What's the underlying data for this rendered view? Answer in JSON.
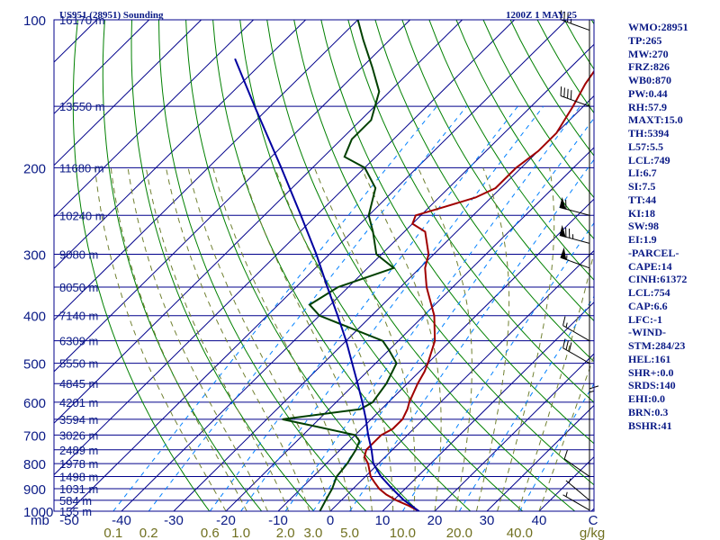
{
  "header": {
    "station": "US951 (28951) Sounding",
    "time": "1200Z  1 MAY 25"
  },
  "indices": [
    "WMO:28951",
    "TP:265",
    "MW:270",
    "FRZ:826",
    "WB0:870",
    "PW:0.44",
    "RH:57.9",
    "MAXT:15.0",
    "TH:5394",
    "L57:5.5",
    "LCL:749",
    "LI:6.7",
    "SI:7.5",
    "TT:44",
    "KI:18",
    "SW:98",
    "EI:1.9",
    "-PARCEL-",
    "CAPE:14",
    "CINH:61372",
    "LCL:754",
    "CAP:6.6",
    "LFC:-1",
    "-WIND-",
    "STM:284/23",
    "HEL:161",
    "SHR+:0.0",
    "SRDS:140",
    "EHI:0.0",
    "BRN:0.3",
    "BSHR:41"
  ],
  "colors": {
    "temperature": "#a00000",
    "dewpoint": "#004000",
    "parcel": "#0000a0",
    "isobar": "#00008b",
    "isotherm": "#00008b",
    "dry_adiabat": "#008000",
    "moist_adiabat": "#708030",
    "mixing_ratio": "#0080ff",
    "axis_text": "#0a1a86"
  },
  "chart_data": {
    "type": "line",
    "title": "US951 (28951) Sounding",
    "xlabel": "",
    "ylabel": "mb",
    "pressure_ticks": [
      100,
      200,
      300,
      400,
      500,
      600,
      700,
      800,
      900,
      1000
    ],
    "temperature_ticks": [
      -50,
      -40,
      -30,
      -20,
      -10,
      0,
      10,
      20,
      30,
      40
    ],
    "x_unit_label": "C",
    "mixing_ratio_labels": [
      "0.1",
      "0.2",
      "0.6",
      "1.0",
      "2.0",
      "3.0",
      "5.0",
      "10.0",
      "20.0",
      "40.0"
    ],
    "mixing_ratio_unit": "g/kg",
    "height_labels": [
      {
        "p": 100,
        "label": "16170 m"
      },
      {
        "p": 150,
        "label": "13550 m"
      },
      {
        "p": 200,
        "label": "11680 m"
      },
      {
        "p": 250,
        "label": "10240 m"
      },
      {
        "p": 300,
        "label": "9080 m"
      },
      {
        "p": 350,
        "label": "8050 m"
      },
      {
        "p": 400,
        "label": "7140 m"
      },
      {
        "p": 450,
        "label": "6309 m"
      },
      {
        "p": 500,
        "label": "5550 m"
      },
      {
        "p": 550,
        "label": "4845 m"
      },
      {
        "p": 600,
        "label": "4201 m"
      },
      {
        "p": 650,
        "label": "3594 m"
      },
      {
        "p": 700,
        "label": "3026 m"
      },
      {
        "p": 750,
        "label": "2489 m"
      },
      {
        "p": 800,
        "label": "1978 m"
      },
      {
        "p": 850,
        "label": "1498 m"
      },
      {
        "p": 900,
        "label": "1031 m"
      },
      {
        "p": 950,
        "label": "584 m"
      },
      {
        "p": 1000,
        "label": "155 m"
      }
    ],
    "series": [
      {
        "name": "temperature",
        "points": [
          {
            "p": 1000,
            "t": 17
          },
          {
            "p": 975,
            "t": 14
          },
          {
            "p": 950,
            "t": 10.5
          },
          {
            "p": 925,
            "t": 7.5
          },
          {
            "p": 900,
            "t": 5
          },
          {
            "p": 875,
            "t": 3
          },
          {
            "p": 850,
            "t": 1
          },
          {
            "p": 800,
            "t": -2
          },
          {
            "p": 775,
            "t": -4
          },
          {
            "p": 750,
            "t": -5
          },
          {
            "p": 725,
            "t": -5
          },
          {
            "p": 700,
            "t": -5
          },
          {
            "p": 680,
            "t": -4
          },
          {
            "p": 650,
            "t": -4
          },
          {
            "p": 620,
            "t": -5
          },
          {
            "p": 600,
            "t": -6
          },
          {
            "p": 550,
            "t": -8
          },
          {
            "p": 520,
            "t": -9
          },
          {
            "p": 500,
            "t": -10
          },
          {
            "p": 450,
            "t": -13
          },
          {
            "p": 400,
            "t": -18
          },
          {
            "p": 350,
            "t": -25
          },
          {
            "p": 320,
            "t": -29
          },
          {
            "p": 300,
            "t": -31
          },
          {
            "p": 270,
            "t": -36
          },
          {
            "p": 260,
            "t": -40
          },
          {
            "p": 250,
            "t": -41
          },
          {
            "p": 240,
            "t": -37
          },
          {
            "p": 230,
            "t": -33
          },
          {
            "p": 220,
            "t": -31
          },
          {
            "p": 200,
            "t": -31
          },
          {
            "p": 185,
            "t": -30
          },
          {
            "p": 170,
            "t": -30
          },
          {
            "p": 150,
            "t": -32
          },
          {
            "p": 135,
            "t": -34
          },
          {
            "p": 125,
            "t": -35
          },
          {
            "p": 115,
            "t": -36
          },
          {
            "p": 105,
            "t": -34
          },
          {
            "p": 100,
            "t": -34
          }
        ]
      },
      {
        "name": "dewpoint",
        "points": [
          {
            "p": 1000,
            "t": -2
          },
          {
            "p": 950,
            "t": -3
          },
          {
            "p": 900,
            "t": -4
          },
          {
            "p": 850,
            "t": -5.5
          },
          {
            "p": 800,
            "t": -6
          },
          {
            "p": 750,
            "t": -7
          },
          {
            "p": 720,
            "t": -8
          },
          {
            "p": 700,
            "t": -10
          },
          {
            "p": 670,
            "t": -20
          },
          {
            "p": 650,
            "t": -27
          },
          {
            "p": 620,
            "t": -14
          },
          {
            "p": 600,
            "t": -13
          },
          {
            "p": 550,
            "t": -14
          },
          {
            "p": 500,
            "t": -16
          },
          {
            "p": 470,
            "t": -20
          },
          {
            "p": 450,
            "t": -23
          },
          {
            "p": 400,
            "t": -40
          },
          {
            "p": 380,
            "t": -44
          },
          {
            "p": 350,
            "t": -42
          },
          {
            "p": 320,
            "t": -35
          },
          {
            "p": 300,
            "t": -41
          },
          {
            "p": 270,
            "t": -46
          },
          {
            "p": 250,
            "t": -50
          },
          {
            "p": 220,
            "t": -54
          },
          {
            "p": 200,
            "t": -60
          },
          {
            "p": 190,
            "t": -66
          },
          {
            "p": 175,
            "t": -68
          },
          {
            "p": 160,
            "t": -68
          },
          {
            "p": 140,
            "t": -72
          },
          {
            "p": 125,
            "t": -78
          },
          {
            "p": 110,
            "t": -85
          },
          {
            "p": 100,
            "t": -90
          }
        ]
      },
      {
        "name": "parcel",
        "points": [
          {
            "p": 1000,
            "t": 17
          },
          {
            "p": 950,
            "t": 12
          },
          {
            "p": 900,
            "t": 7.5
          },
          {
            "p": 850,
            "t": 3
          },
          {
            "p": 800,
            "t": -1
          },
          {
            "p": 750,
            "t": -4
          },
          {
            "p": 700,
            "t": -7.5
          },
          {
            "p": 650,
            "t": -11
          },
          {
            "p": 600,
            "t": -15
          },
          {
            "p": 550,
            "t": -19.5
          },
          {
            "p": 500,
            "t": -24.5
          },
          {
            "p": 450,
            "t": -30
          },
          {
            "p": 400,
            "t": -36.5
          },
          {
            "p": 350,
            "t": -44
          },
          {
            "p": 300,
            "t": -52.5
          },
          {
            "p": 250,
            "t": -63
          },
          {
            "p": 200,
            "t": -76
          },
          {
            "p": 150,
            "t": -93
          },
          {
            "p": 120,
            "t": -106
          }
        ]
      }
    ],
    "wind_barbs": [
      {
        "p": 995,
        "dir": 300,
        "kt": 5
      },
      {
        "p": 950,
        "dir": 310,
        "kt": 5
      },
      {
        "p": 850,
        "dir": 305,
        "kt": 10
      },
      {
        "p": 650,
        "dir": 0,
        "kt": 15
      },
      {
        "p": 500,
        "dir": 300,
        "kt": 30
      },
      {
        "p": 450,
        "dir": 300,
        "kt": 15
      },
      {
        "p": 320,
        "dir": 290,
        "kt": 55
      },
      {
        "p": 285,
        "dir": 285,
        "kt": 75
      },
      {
        "p": 250,
        "dir": 285,
        "kt": 60
      },
      {
        "p": 150,
        "dir": 290,
        "kt": 40
      },
      {
        "p": 105,
        "dir": 290,
        "kt": 35
      }
    ],
    "hodograph_axis": [
      {
        "p": 1000
      },
      {
        "p": 950
      },
      {
        "p": 900
      },
      {
        "p": 850
      },
      {
        "p": 800
      },
      {
        "p": 700
      },
      {
        "p": 600
      },
      {
        "p": 500
      },
      {
        "p": 400
      },
      {
        "p": 300
      },
      {
        "p": 250
      },
      {
        "p": 200
      },
      {
        "p": 150
      },
      {
        "p": 100
      }
    ],
    "dry_adiabat_thetas": [
      250,
      260,
      270,
      280,
      290,
      300,
      310,
      320,
      330,
      340,
      350,
      360,
      370,
      380,
      390,
      400,
      410,
      420,
      430,
      440,
      450,
      460,
      470,
      480,
      490,
      500,
      510,
      520,
      530,
      540,
      550,
      560,
      570,
      580,
      590,
      600
    ],
    "moist_adiabat_thetaw": [
      -20,
      -16,
      -12,
      -8,
      -4,
      0,
      4,
      8,
      12,
      16,
      20,
      24,
      28,
      32,
      36,
      40
    ],
    "mixing_ratio_values": [
      0.1,
      0.2,
      0.6,
      1.0,
      2.0,
      3.0,
      5.0,
      10.0,
      20.0,
      40.0
    ]
  }
}
